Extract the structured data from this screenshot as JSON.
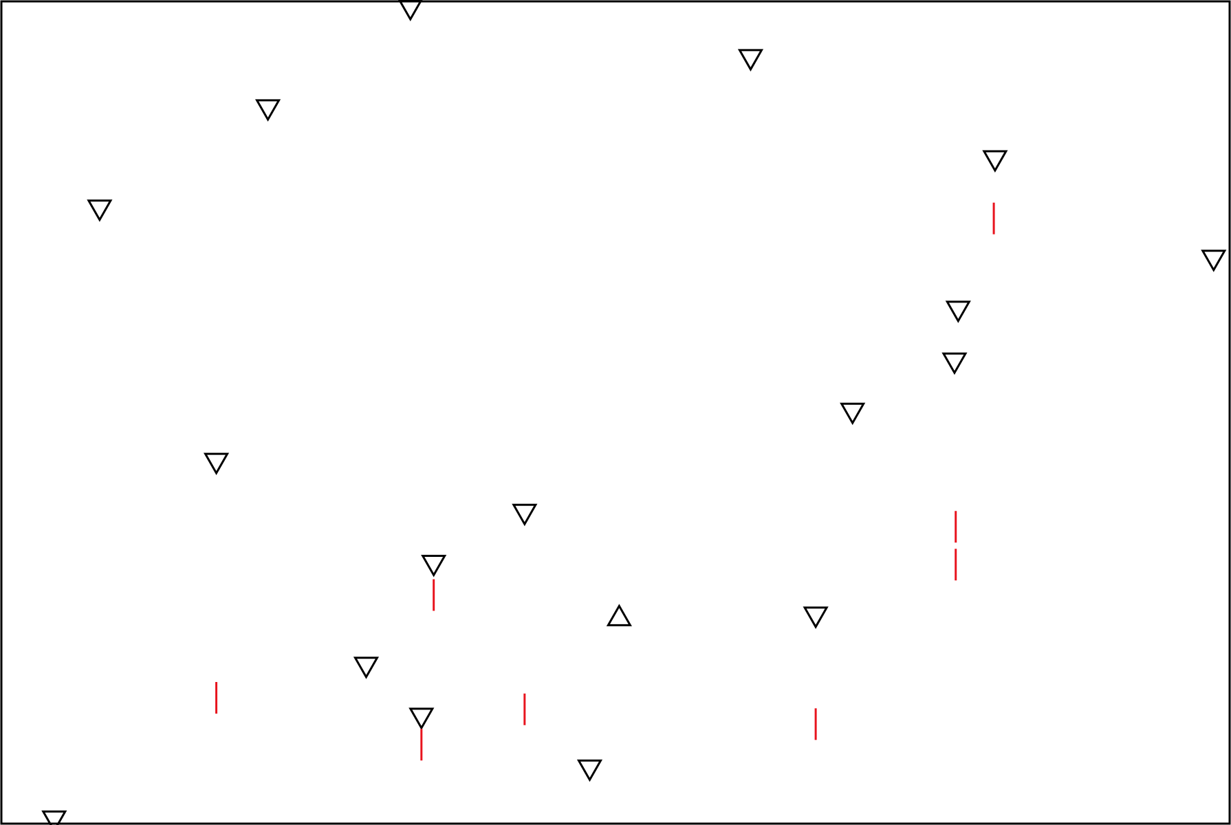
{
  "chart_data": {
    "type": "scatter",
    "title": "",
    "xlabel": "",
    "ylabel": "",
    "grid": false,
    "legend": "none",
    "xlim": [
      0,
      100
    ],
    "ylim": [
      0,
      100
    ],
    "colors": {
      "frame": "#000000",
      "marker": "#000000",
      "tick": "#e8141e",
      "background": "#ffffff"
    },
    "series": [
      {
        "marker": "triangle-down",
        "points": [
          [
            33.3,
            99.0
          ],
          [
            61.0,
            92.9
          ],
          [
            21.7,
            86.8
          ],
          [
            80.9,
            80.6
          ],
          [
            8.0,
            74.6
          ],
          [
            98.7,
            68.5
          ],
          [
            77.9,
            62.3
          ],
          [
            77.6,
            56.0
          ],
          [
            69.3,
            49.9
          ],
          [
            17.5,
            43.8
          ],
          [
            42.6,
            37.6
          ],
          [
            35.2,
            31.4
          ],
          [
            66.3,
            25.1
          ],
          [
            29.7,
            19.0
          ],
          [
            34.2,
            12.8
          ],
          [
            47.9,
            6.5
          ],
          [
            4.3,
            0.3
          ]
        ]
      },
      {
        "marker": "triangle-up",
        "points": [
          [
            50.3,
            25.3
          ]
        ]
      },
      {
        "marker": "vertical-tick",
        "points": [
          [
            80.8,
            73.6
          ],
          [
            77.7,
            36.1
          ],
          [
            77.7,
            31.5
          ],
          [
            35.2,
            27.8
          ],
          [
            17.5,
            15.3
          ],
          [
            42.6,
            13.9
          ],
          [
            66.3,
            12.1
          ],
          [
            34.2,
            9.6
          ]
        ]
      }
    ]
  }
}
